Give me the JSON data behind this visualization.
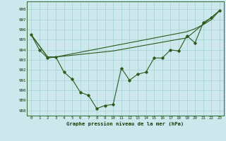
{
  "title": "Graphe pression niveau de la mer (hPa)",
  "background_color": "#cce8ec",
  "grid_color": "#99cccc",
  "line_color": "#2d5a1b",
  "marker_color": "#2d5a1b",
  "xlim": [
    -0.5,
    23.5
  ],
  "ylim": [
    987.5,
    998.8
  ],
  "yticks": [
    988,
    989,
    990,
    991,
    992,
    993,
    994,
    995,
    996,
    997,
    998
  ],
  "xticks": [
    0,
    1,
    2,
    3,
    4,
    5,
    6,
    7,
    8,
    9,
    10,
    11,
    12,
    13,
    14,
    15,
    16,
    17,
    18,
    19,
    20,
    21,
    22,
    23
  ],
  "line1_x": [
    0,
    1,
    2,
    3,
    4,
    5,
    6,
    7,
    8,
    9,
    10,
    11,
    12,
    13,
    14,
    15,
    16,
    17,
    18,
    19,
    20,
    21,
    22,
    23
  ],
  "line1_y": [
    995.5,
    994.0,
    993.2,
    993.3,
    991.8,
    991.1,
    989.8,
    989.5,
    988.2,
    988.5,
    988.6,
    992.2,
    991.0,
    991.6,
    991.8,
    993.2,
    993.2,
    994.0,
    993.9,
    995.4,
    994.7,
    996.7,
    997.2,
    997.9
  ],
  "line2_x": [
    0,
    2,
    3,
    10,
    19,
    23
  ],
  "line2_y": [
    995.5,
    993.3,
    993.3,
    993.9,
    995.2,
    997.9
  ],
  "line3_x": [
    0,
    2,
    3,
    10,
    19,
    20,
    21,
    22,
    23
  ],
  "line3_y": [
    995.5,
    993.3,
    993.3,
    994.4,
    995.8,
    996.1,
    996.5,
    997.0,
    997.9
  ]
}
